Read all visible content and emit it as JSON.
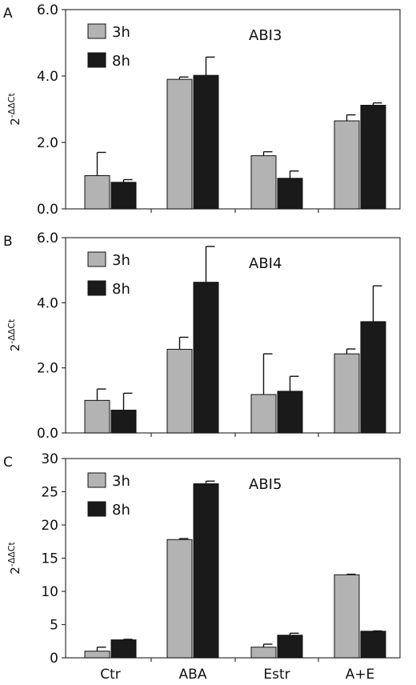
{
  "colors": {
    "3h": "#b3b3b3",
    "8h": "#1a1a1a",
    "axis": "#333333"
  },
  "legend_labels": [
    "3h",
    "8h"
  ],
  "chart_data": [
    {
      "panel": "A",
      "type": "bar",
      "title": "ABI3",
      "ylabel": "2-ΔΔCt",
      "ylabel_base": "2",
      "ylabel_sup": "-ΔΔCt",
      "categories": [
        "Ctr",
        "ABA",
        "Estr",
        "A+E"
      ],
      "show_xticklabels": false,
      "ylim": [
        0,
        6
      ],
      "yticks": [
        0,
        2,
        4,
        6
      ],
      "ytick_labels": [
        "0.0",
        "2.0",
        "4.0",
        "6.0"
      ],
      "legend": "top-left",
      "series": [
        {
          "name": "3h",
          "values": [
            1.0,
            3.9,
            1.6,
            2.65
          ],
          "errors": [
            0.7,
            0.07,
            0.12,
            0.18
          ]
        },
        {
          "name": "8h",
          "values": [
            0.8,
            4.02,
            0.92,
            3.12
          ],
          "errors": [
            0.08,
            0.55,
            0.22,
            0.07
          ]
        }
      ]
    },
    {
      "panel": "B",
      "type": "bar",
      "title": "ABI4",
      "ylabel": "2-ΔΔCt",
      "ylabel_base": "2",
      "ylabel_sup": "-ΔΔCt",
      "categories": [
        "Ctr",
        "ABA",
        "Estr",
        "A+E"
      ],
      "show_xticklabels": false,
      "ylim": [
        0,
        6
      ],
      "yticks": [
        0,
        2,
        4,
        6
      ],
      "ytick_labels": [
        "0.0",
        "2.0",
        "4.0",
        "6.0"
      ],
      "legend": "top-left",
      "series": [
        {
          "name": "3h",
          "values": [
            1.0,
            2.57,
            1.18,
            2.43
          ],
          "errors": [
            0.35,
            0.37,
            1.25,
            0.15
          ]
        },
        {
          "name": "8h",
          "values": [
            0.7,
            4.63,
            1.28,
            3.42
          ],
          "errors": [
            0.52,
            1.1,
            0.46,
            1.1
          ]
        }
      ]
    },
    {
      "panel": "C",
      "type": "bar",
      "title": "ABI5",
      "ylabel": "2-ΔΔCt",
      "ylabel_base": "2",
      "ylabel_sup": "-ΔΔCt",
      "categories": [
        "Ctr",
        "ABA",
        "Estr",
        "A+E"
      ],
      "show_xticklabels": true,
      "ylim": [
        0,
        30
      ],
      "yticks": [
        0,
        5,
        10,
        15,
        20,
        25,
        30
      ],
      "ytick_labels": [
        "0",
        "5",
        "10",
        "15",
        "20",
        "25",
        "30"
      ],
      "legend": "top-left",
      "series": [
        {
          "name": "3h",
          "values": [
            1.0,
            17.8,
            1.6,
            12.5
          ],
          "errors": [
            0.6,
            0.15,
            0.45,
            0.08
          ]
        },
        {
          "name": "8h",
          "values": [
            2.7,
            26.2,
            3.4,
            4.0
          ],
          "errors": [
            0.08,
            0.4,
            0.3,
            0.05
          ]
        }
      ]
    }
  ]
}
